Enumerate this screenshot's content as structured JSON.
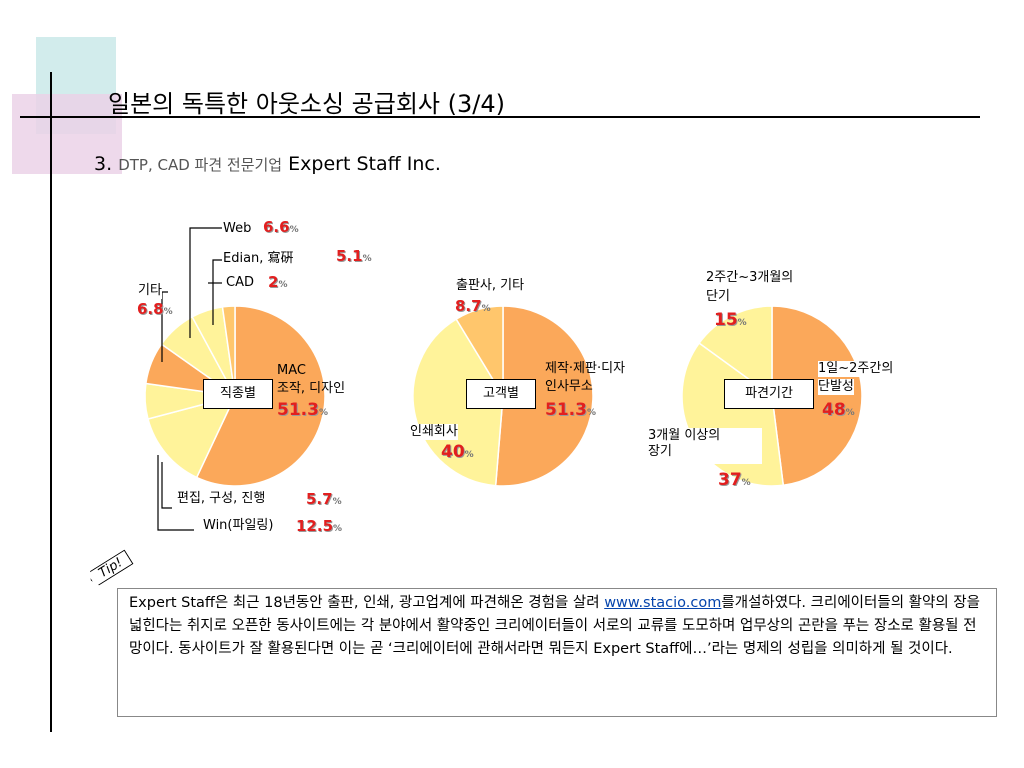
{
  "title": "일본의 독특한 아웃소싱 공급회사 (3/4)",
  "subtitle": {
    "number": "3.",
    "sub": "DTP, CAD 파견 전문기업",
    "company": "Expert Staff Inc."
  },
  "chart_data": [
    {
      "type": "pie",
      "center_label": "직종별",
      "slices": [
        {
          "name": "MAC 조작, 디자인",
          "value": 51.3
        },
        {
          "name": "Win(파일링)",
          "value": 12.5
        },
        {
          "name": "편집, 구성, 진행",
          "value": 5.7
        },
        {
          "name": "기타",
          "value": 6.8
        },
        {
          "name": "Web",
          "value": 6.6
        },
        {
          "name": "Edian, 寫硏",
          "value": 5.1
        },
        {
          "name": "CAD",
          "value": 2
        }
      ]
    },
    {
      "type": "pie",
      "center_label": "고객별",
      "slices": [
        {
          "name": "제작·제판·디자인사무소",
          "value": 51.3
        },
        {
          "name": "인쇄회사",
          "value": 40
        },
        {
          "name": "출판사, 기타",
          "value": 8.7
        }
      ]
    },
    {
      "type": "pie",
      "center_label": "파견기간",
      "slices": [
        {
          "name": "1일~2주간의 단발성",
          "value": 48
        },
        {
          "name": "3개월 이상의 장기",
          "value": 37
        },
        {
          "name": "2주간~3개월의 단기",
          "value": 15
        }
      ]
    }
  ],
  "labels": {
    "web": "Web",
    "web_pct": "6.6",
    "edian": "Edian, 寫硏",
    "edian_pct": "5.1",
    "cad": "CAD",
    "cad_pct": "2",
    "etc": "기타",
    "etc_pct": "6.8",
    "mac1": "MAC",
    "mac2": "조작, 디자인",
    "mac_pct": "51.3",
    "edit": "편집, 구성, 진행",
    "edit_pct": "5.7",
    "win": "Win(파일링)",
    "win_pct": "12.5",
    "pub": "출판사, 기타",
    "pub_pct": "8.7",
    "prod1": "제작·제판·디자",
    "prod2": "인사무소",
    "prod_pct": "51.3",
    "print": "인쇄회사",
    "print_pct": "40",
    "short1": "2주간~3개월의",
    "short2": "단기",
    "short_pct": "15",
    "day1": "1일~2주간의",
    "day2": "단발성",
    "day_pct": "48",
    "long1": "3개월 이상의",
    "long2": "장기",
    "long_pct": "37",
    "pct_unit": "%"
  },
  "tip": {
    "flag": "Tip!",
    "line1_pre": "Expert Staff은 최근 18년동안 출판, 인쇄, 광고업계에 파견해온 경험을 살려 ",
    "link": "www.stacio.com",
    "line1_post": "를",
    "rest": "개설하였다. 크리에이터들의 활약의 장을 넓힌다는 취지로 오픈한 동사이트에는 각 분야에서 활약중인 크리에이터들이 서로의 교류를 도모하며 업무상의 곤란을 푸는 장소로 활용될 전망이다. 동사이트가 잘 활용된다면 이는 곧 ‘크리에이터에 관해서라면 뭐든지 Expert Staff에…’라는 명제의 성립을 의미하게 될 것이다."
  },
  "colors": {
    "orange": "#fba85a",
    "light": "#fff39a",
    "mid": "#ffc66c",
    "red": "#e21f1f"
  }
}
